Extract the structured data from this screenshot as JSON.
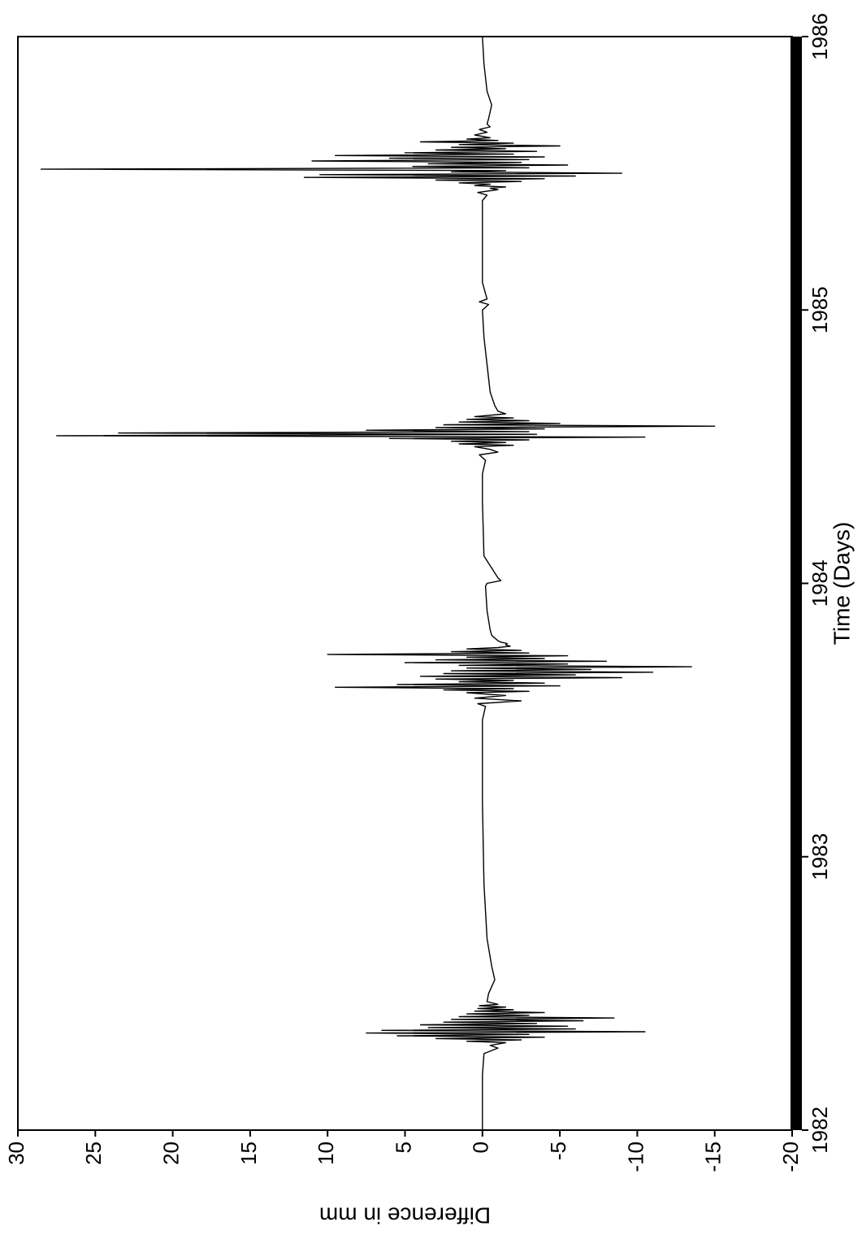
{
  "chart_data": {
    "type": "line",
    "title": "",
    "xlabel": "Time (Days)",
    "ylabel": "Difference in mm",
    "orientation": "rotated 90° clockwise (x axis on the right edge, y axis along the bottom)",
    "xlim": [
      1982,
      1986
    ],
    "ylim": [
      -20,
      30
    ],
    "x_ticks": [
      "1982",
      "1983",
      "1984",
      "1985",
      "1986"
    ],
    "y_ticks": [
      "30",
      "25",
      "20",
      "15",
      "10",
      "5",
      "0",
      "-5",
      "-10",
      "-15",
      "-20"
    ],
    "grid": false,
    "legend": "none",
    "line_color": "#000000",
    "series": [
      {
        "x": [
          1982.0,
          1982.1,
          1982.2,
          1982.28,
          1982.3,
          1982.31,
          1982.32,
          1982.325,
          1982.33,
          1982.335,
          1982.34,
          1982.345,
          1982.35,
          1982.355,
          1982.36,
          1982.365,
          1982.37,
          1982.375,
          1982.38,
          1982.385,
          1982.39,
          1982.395,
          1982.4,
          1982.405,
          1982.41,
          1982.415,
          1982.42,
          1982.425,
          1982.43,
          1982.435,
          1982.44,
          1982.445,
          1982.45,
          1982.455,
          1982.46,
          1982.47,
          1982.5,
          1982.55,
          1982.6,
          1982.7,
          1982.9,
          1983.2,
          1983.5,
          1983.55,
          1983.56,
          1983.57,
          1983.58,
          1983.59,
          1983.6,
          1983.605,
          1983.61,
          1983.615,
          1983.62,
          1983.625,
          1983.63,
          1983.635,
          1983.64,
          1983.645,
          1983.65,
          1983.655,
          1983.66,
          1983.665,
          1983.67,
          1983.675,
          1983.68,
          1983.685,
          1983.69,
          1983.695,
          1983.7,
          1983.705,
          1983.71,
          1983.715,
          1983.72,
          1983.725,
          1983.73,
          1983.735,
          1983.74,
          1983.745,
          1983.75,
          1983.755,
          1983.76,
          1983.765,
          1983.77,
          1983.775,
          1983.78,
          1983.785,
          1983.79,
          1983.795,
          1983.8,
          1983.81,
          1983.83,
          1983.9,
          1983.99,
          1984.0,
          1984.01,
          1984.02,
          1984.1,
          1984.3,
          1984.4,
          1984.45,
          1984.47,
          1984.48,
          1984.49,
          1984.5,
          1984.505,
          1984.51,
          1984.515,
          1984.52,
          1984.525,
          1984.53,
          1984.535,
          1984.54,
          1984.545,
          1984.55,
          1984.555,
          1984.56,
          1984.565,
          1984.57,
          1984.575,
          1984.58,
          1984.585,
          1984.59,
          1984.595,
          1984.6,
          1984.605,
          1984.61,
          1984.62,
          1984.63,
          1984.65,
          1984.7,
          1984.8,
          1984.9,
          1985.0,
          1985.02,
          1985.03,
          1985.04,
          1985.1,
          1985.3,
          1985.4,
          1985.42,
          1985.43,
          1985.44,
          1985.445,
          1985.45,
          1985.455,
          1985.46,
          1985.465,
          1985.47,
          1985.475,
          1985.48,
          1985.485,
          1985.49,
          1985.495,
          1985.5,
          1985.505,
          1985.51,
          1985.515,
          1985.52,
          1985.525,
          1985.53,
          1985.535,
          1985.54,
          1985.545,
          1985.55,
          1985.555,
          1985.56,
          1985.565,
          1985.57,
          1985.575,
          1985.58,
          1985.585,
          1985.59,
          1985.595,
          1985.6,
          1985.605,
          1985.61,
          1985.615,
          1985.62,
          1985.625,
          1985.63,
          1985.64,
          1985.65,
          1985.66,
          1985.67,
          1985.68,
          1985.7,
          1985.75,
          1985.8,
          1985.9,
          1986.0
        ],
        "y": [
          0.0,
          0.0,
          0.0,
          -0.1,
          -1.0,
          -0.5,
          -1.5,
          1.0,
          -2.5,
          3.0,
          -4.0,
          5.5,
          -3.0,
          7.5,
          -10.5,
          6.5,
          -6.0,
          3.5,
          -5.5,
          4.0,
          -3.5,
          2.5,
          -6.5,
          2.0,
          -8.5,
          1.5,
          -3.0,
          1.0,
          -4.0,
          0.5,
          -2.0,
          0.3,
          -1.5,
          0.2,
          -1.0,
          -0.3,
          -0.4,
          -0.8,
          -0.6,
          -0.3,
          -0.1,
          0.0,
          0.0,
          -0.2,
          0.3,
          -2.5,
          0.5,
          -1.5,
          1.0,
          -3.0,
          2.5,
          -2.0,
          9.5,
          -5.0,
          5.5,
          -4.0,
          1.5,
          -2.0,
          3.0,
          -9.0,
          4.0,
          -6.0,
          2.5,
          -11.0,
          2.0,
          -7.0,
          1.0,
          -13.5,
          1.5,
          -5.5,
          5.0,
          -8.0,
          3.0,
          -4.0,
          1.0,
          -5.5,
          10.0,
          -3.0,
          2.0,
          -2.5,
          1.0,
          -1.0,
          -1.8,
          -1.5,
          -1.6,
          -1.2,
          -1.0,
          -0.9,
          -0.8,
          -0.6,
          -0.5,
          -0.3,
          -0.2,
          -0.3,
          -1.2,
          -1.0,
          -0.1,
          0.0,
          0.0,
          -0.2,
          0.2,
          -1.0,
          -0.5,
          0.5,
          -2.0,
          1.5,
          -1.5,
          2.0,
          -3.0,
          6.0,
          -10.5,
          27.5,
          -3.5,
          23.5,
          -3.0,
          7.5,
          -4.0,
          3.0,
          -15.0,
          2.5,
          -5.0,
          1.5,
          -3.0,
          1.0,
          -2.0,
          0.5,
          -1.5,
          -1.0,
          -0.8,
          -0.5,
          -0.3,
          -0.1,
          0.0,
          -0.4,
          0.2,
          -0.3,
          0.0,
          0.0,
          0.0,
          -0.3,
          0.3,
          -1.0,
          -0.5,
          -1.5,
          0.5,
          -0.5,
          1.5,
          -2.5,
          3.0,
          -4.0,
          11.5,
          -6.0,
          10.5,
          -9.0,
          2.0,
          -1.5,
          28.5,
          -3.0,
          4.5,
          -5.5,
          3.5,
          -2.5,
          11.0,
          -3.0,
          6.0,
          -4.0,
          9.5,
          -2.0,
          5.0,
          -3.5,
          3.0,
          -1.5,
          2.0,
          -5.0,
          1.5,
          -2.0,
          4.0,
          -1.0,
          1.0,
          -0.5,
          0.5,
          -0.3,
          0.2,
          -0.5,
          -0.3,
          -0.4,
          -0.6,
          -0.3,
          -0.1,
          0.0
        ]
      }
    ]
  }
}
